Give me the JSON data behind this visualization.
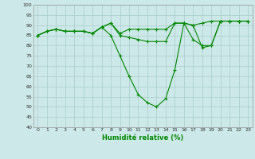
{
  "xlabel": "Humidité relative (%)",
  "background_color": "#cce8e8",
  "grid_color": "#aacccc",
  "line_color": "#008800",
  "xlim": [
    -0.5,
    23.5
  ],
  "ylim": [
    40,
    100
  ],
  "yticks": [
    40,
    45,
    50,
    55,
    60,
    65,
    70,
    75,
    80,
    85,
    90,
    95,
    100
  ],
  "xticks": [
    0,
    1,
    2,
    3,
    4,
    5,
    6,
    7,
    8,
    9,
    10,
    11,
    12,
    13,
    14,
    15,
    16,
    17,
    18,
    19,
    20,
    21,
    22,
    23
  ],
  "line1": [
    85,
    87,
    88,
    87,
    87,
    87,
    86,
    89,
    91,
    86,
    88,
    88,
    88,
    88,
    88,
    91,
    91,
    90,
    91,
    92,
    92,
    92,
    92,
    92
  ],
  "line2": [
    85,
    87,
    88,
    87,
    87,
    87,
    86,
    89,
    91,
    85,
    84,
    83,
    82,
    82,
    82,
    91,
    91,
    83,
    80,
    80,
    92,
    92,
    92,
    92
  ],
  "line3": [
    85,
    87,
    88,
    87,
    87,
    87,
    86,
    89,
    85,
    75,
    65,
    56,
    52,
    50,
    54,
    68,
    91,
    90,
    79,
    80,
    92,
    92,
    92,
    92
  ]
}
